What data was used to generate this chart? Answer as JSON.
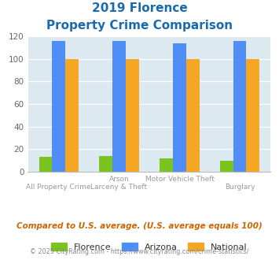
{
  "title_line1": "2019 Florence",
  "title_line2": "Property Crime Comparison",
  "cat_labels_row1": [
    "",
    "Arson",
    "Motor Vehicle Theft",
    ""
  ],
  "cat_labels_row2": [
    "All Property Crime",
    "Larceny & Theft",
    "",
    "Burglary"
  ],
  "florence": [
    13,
    14,
    12,
    10
  ],
  "arizona": [
    116,
    116,
    114,
    116
  ],
  "national": [
    100,
    100,
    100,
    100
  ],
  "florence_color": "#7bc41f",
  "arizona_color": "#4f8ef7",
  "national_color": "#f5a623",
  "title_color": "#1a6ab0",
  "plot_bg": "#dce9f0",
  "ylim": [
    0,
    120
  ],
  "yticks": [
    0,
    20,
    40,
    60,
    80,
    100,
    120
  ],
  "footnote": "Compared to U.S. average. (U.S. average equals 100)",
  "copyright": "© 2025 CityRating.com - https://www.cityrating.com/crime-statistics/",
  "footnote_color": "#cc6600",
  "copyright_color": "#888888",
  "legend_labels": [
    "Florence",
    "Arizona",
    "National"
  ],
  "bar_width": 0.22,
  "label_color": "#999999"
}
